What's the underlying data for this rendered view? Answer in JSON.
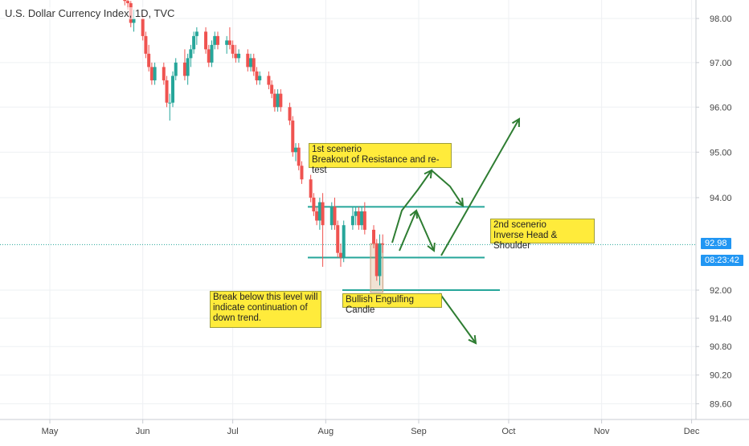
{
  "header": {
    "title": "U.S. Dollar Currency Index, 1D, TVC"
  },
  "price_axis": {
    "last_price": "92.98",
    "countdown": "08:23:42"
  },
  "annotations": {
    "scenario1": "1st scenerio\nBreakout of Resistance and re-test",
    "scenario2": "2nd scenerio\nInverse Head & Shoulder",
    "break_note": "Break below this level will\nindicate continuation of\ndown trend.",
    "candle_note": "Bullish Engulfing Candle"
  },
  "colors": {
    "up": "#26a69a",
    "down": "#ef5350",
    "level_lines": "#26a69a",
    "arrows": "#2e7d32",
    "note_bg": "#ffeb3b",
    "price_tag": "#2196f3",
    "grid": "#eef0f3",
    "axis_text": "#444444"
  },
  "chart_data": {
    "type": "candlestick",
    "title": "U.S. Dollar Currency Index, 1D, TVC",
    "xlabel": "",
    "ylabel": "",
    "ylim": [
      89.45,
      98.3
    ],
    "y_scale": "log",
    "y_ticks": [
      "89.60",
      "90.20",
      "90.80",
      "91.40",
      "92.00",
      "94.00",
      "95.00",
      "96.00",
      "97.00",
      "98.00"
    ],
    "x_ticks": [
      "May",
      "Jun",
      "Jul",
      "Aug",
      "Sep",
      "Oct",
      "Nov",
      "Dec"
    ],
    "grid": true,
    "last_price": 92.98,
    "levels": [
      93.8,
      92.7,
      92.0
    ],
    "highlight_candles": [
      [
        "2020-08-17",
        "2020-08-19"
      ]
    ],
    "candles": [
      {
        "date": "2020-05-26",
        "o": 98.8,
        "h": 98.9,
        "l": 98.3,
        "c": 98.4
      },
      {
        "date": "2020-05-27",
        "o": 98.4,
        "h": 98.6,
        "l": 98.2,
        "c": 98.35
      },
      {
        "date": "2020-05-28",
        "o": 98.35,
        "h": 98.4,
        "l": 97.8,
        "c": 97.9
      },
      {
        "date": "2020-05-29",
        "o": 97.9,
        "h": 98.2,
        "l": 97.7,
        "c": 98.0
      },
      {
        "date": "2020-06-01",
        "o": 98.0,
        "h": 98.1,
        "l": 97.5,
        "c": 97.6
      },
      {
        "date": "2020-06-02",
        "o": 97.6,
        "h": 97.7,
        "l": 97.1,
        "c": 97.2
      },
      {
        "date": "2020-06-03",
        "o": 97.2,
        "h": 97.4,
        "l": 96.8,
        "c": 96.9
      },
      {
        "date": "2020-06-04",
        "o": 96.9,
        "h": 97.0,
        "l": 96.5,
        "c": 96.6
      },
      {
        "date": "2020-06-05",
        "o": 96.6,
        "h": 97.0,
        "l": 96.5,
        "c": 96.9
      },
      {
        "date": "2020-06-08",
        "o": 96.9,
        "h": 97.0,
        "l": 96.5,
        "c": 96.6
      },
      {
        "date": "2020-06-09",
        "o": 96.6,
        "h": 96.7,
        "l": 96.0,
        "c": 96.1
      },
      {
        "date": "2020-06-10",
        "o": 96.1,
        "h": 96.3,
        "l": 95.7,
        "c": 96.1
      },
      {
        "date": "2020-06-11",
        "o": 96.1,
        "h": 96.8,
        "l": 96.0,
        "c": 96.7
      },
      {
        "date": "2020-06-12",
        "o": 96.7,
        "h": 97.1,
        "l": 96.6,
        "c": 97.0
      },
      {
        "date": "2020-06-15",
        "o": 97.0,
        "h": 97.3,
        "l": 96.6,
        "c": 96.7
      },
      {
        "date": "2020-06-16",
        "o": 96.7,
        "h": 97.2,
        "l": 96.5,
        "c": 97.1
      },
      {
        "date": "2020-06-17",
        "o": 97.1,
        "h": 97.4,
        "l": 96.9,
        "c": 97.3
      },
      {
        "date": "2020-06-18",
        "o": 97.3,
        "h": 97.7,
        "l": 97.2,
        "c": 97.6
      },
      {
        "date": "2020-06-19",
        "o": 97.6,
        "h": 97.8,
        "l": 97.4,
        "c": 97.7
      },
      {
        "date": "2020-06-22",
        "o": 97.7,
        "h": 97.8,
        "l": 97.2,
        "c": 97.3
      },
      {
        "date": "2020-06-23",
        "o": 97.3,
        "h": 97.4,
        "l": 96.9,
        "c": 97.0
      },
      {
        "date": "2020-06-24",
        "o": 97.0,
        "h": 97.5,
        "l": 96.9,
        "c": 97.4
      },
      {
        "date": "2020-06-25",
        "o": 97.4,
        "h": 97.7,
        "l": 97.3,
        "c": 97.6
      },
      {
        "date": "2020-06-26",
        "o": 97.6,
        "h": 97.7,
        "l": 97.3,
        "c": 97.4
      },
      {
        "date": "2020-06-29",
        "o": 97.4,
        "h": 97.6,
        "l": 97.2,
        "c": 97.5
      },
      {
        "date": "2020-06-30",
        "o": 97.5,
        "h": 97.8,
        "l": 97.3,
        "c": 97.4
      },
      {
        "date": "2020-07-01",
        "o": 97.4,
        "h": 97.5,
        "l": 97.1,
        "c": 97.2
      },
      {
        "date": "2020-07-02",
        "o": 97.2,
        "h": 97.4,
        "l": 97.0,
        "c": 97.1
      },
      {
        "date": "2020-07-03",
        "o": 97.1,
        "h": 97.3,
        "l": 97.0,
        "c": 97.2
      },
      {
        "date": "2020-07-06",
        "o": 97.2,
        "h": 97.3,
        "l": 96.8,
        "c": 96.9
      },
      {
        "date": "2020-07-07",
        "o": 96.9,
        "h": 97.2,
        "l": 96.8,
        "c": 97.1
      },
      {
        "date": "2020-07-08",
        "o": 97.1,
        "h": 97.2,
        "l": 96.7,
        "c": 96.8
      },
      {
        "date": "2020-07-09",
        "o": 96.8,
        "h": 96.9,
        "l": 96.5,
        "c": 96.6
      },
      {
        "date": "2020-07-10",
        "o": 96.6,
        "h": 96.8,
        "l": 96.5,
        "c": 96.7
      },
      {
        "date": "2020-07-13",
        "o": 96.7,
        "h": 96.8,
        "l": 96.4,
        "c": 96.5
      },
      {
        "date": "2020-07-14",
        "o": 96.5,
        "h": 96.6,
        "l": 96.2,
        "c": 96.3
      },
      {
        "date": "2020-07-15",
        "o": 96.3,
        "h": 96.4,
        "l": 95.9,
        "c": 96.0
      },
      {
        "date": "2020-07-16",
        "o": 96.0,
        "h": 96.4,
        "l": 95.9,
        "c": 96.3
      },
      {
        "date": "2020-07-17",
        "o": 96.3,
        "h": 96.4,
        "l": 95.9,
        "c": 96.0
      },
      {
        "date": "2020-07-20",
        "o": 96.0,
        "h": 96.1,
        "l": 95.6,
        "c": 95.7
      },
      {
        "date": "2020-07-21",
        "o": 95.7,
        "h": 95.8,
        "l": 94.9,
        "c": 95.0
      },
      {
        "date": "2020-07-22",
        "o": 95.0,
        "h": 95.2,
        "l": 94.8,
        "c": 95.1
      },
      {
        "date": "2020-07-23",
        "o": 95.1,
        "h": 95.2,
        "l": 94.6,
        "c": 94.7
      },
      {
        "date": "2020-07-24",
        "o": 94.7,
        "h": 94.8,
        "l": 94.3,
        "c": 94.4
      },
      {
        "date": "2020-07-27",
        "o": 94.4,
        "h": 94.5,
        "l": 93.9,
        "c": 94.0
      },
      {
        "date": "2020-07-28",
        "o": 94.0,
        "h": 94.1,
        "l": 93.6,
        "c": 93.7
      },
      {
        "date": "2020-07-29",
        "o": 93.7,
        "h": 93.8,
        "l": 93.4,
        "c": 93.5
      },
      {
        "date": "2020-07-30",
        "o": 93.5,
        "h": 94.0,
        "l": 93.3,
        "c": 93.9
      },
      {
        "date": "2020-07-31",
        "o": 93.9,
        "h": 94.1,
        "l": 92.5,
        "c": 93.4
      },
      {
        "date": "2020-08-03",
        "o": 93.4,
        "h": 93.9,
        "l": 93.3,
        "c": 93.8
      },
      {
        "date": "2020-08-04",
        "o": 93.8,
        "h": 94.0,
        "l": 93.3,
        "c": 93.4
      },
      {
        "date": "2020-08-05",
        "o": 93.4,
        "h": 93.5,
        "l": 92.7,
        "c": 92.8
      },
      {
        "date": "2020-08-06",
        "o": 92.8,
        "h": 93.0,
        "l": 92.5,
        "c": 92.7
      },
      {
        "date": "2020-08-07",
        "o": 92.7,
        "h": 93.5,
        "l": 92.6,
        "c": 93.4
      },
      {
        "date": "2020-08-10",
        "o": 93.4,
        "h": 93.8,
        "l": 93.3,
        "c": 93.6
      },
      {
        "date": "2020-08-11",
        "o": 93.6,
        "h": 93.8,
        "l": 93.4,
        "c": 93.7
      },
      {
        "date": "2020-08-12",
        "o": 93.7,
        "h": 93.8,
        "l": 93.3,
        "c": 93.4
      },
      {
        "date": "2020-08-13",
        "o": 93.4,
        "h": 93.8,
        "l": 93.3,
        "c": 93.7
      },
      {
        "date": "2020-08-14",
        "o": 93.7,
        "h": 93.9,
        "l": 93.2,
        "c": 93.3
      },
      {
        "date": "2020-08-17",
        "o": 93.3,
        "h": 93.4,
        "l": 92.9,
        "c": 93.0
      },
      {
        "date": "2020-08-18",
        "o": 93.0,
        "h": 93.1,
        "l": 92.2,
        "c": 92.3
      },
      {
        "date": "2020-08-19",
        "o": 92.3,
        "h": 93.2,
        "l": 92.1,
        "c": 93.0
      },
      {
        "date": "2020-08-20",
        "o": 93.0,
        "h": 93.2,
        "l": 92.8,
        "c": 92.98
      }
    ]
  }
}
